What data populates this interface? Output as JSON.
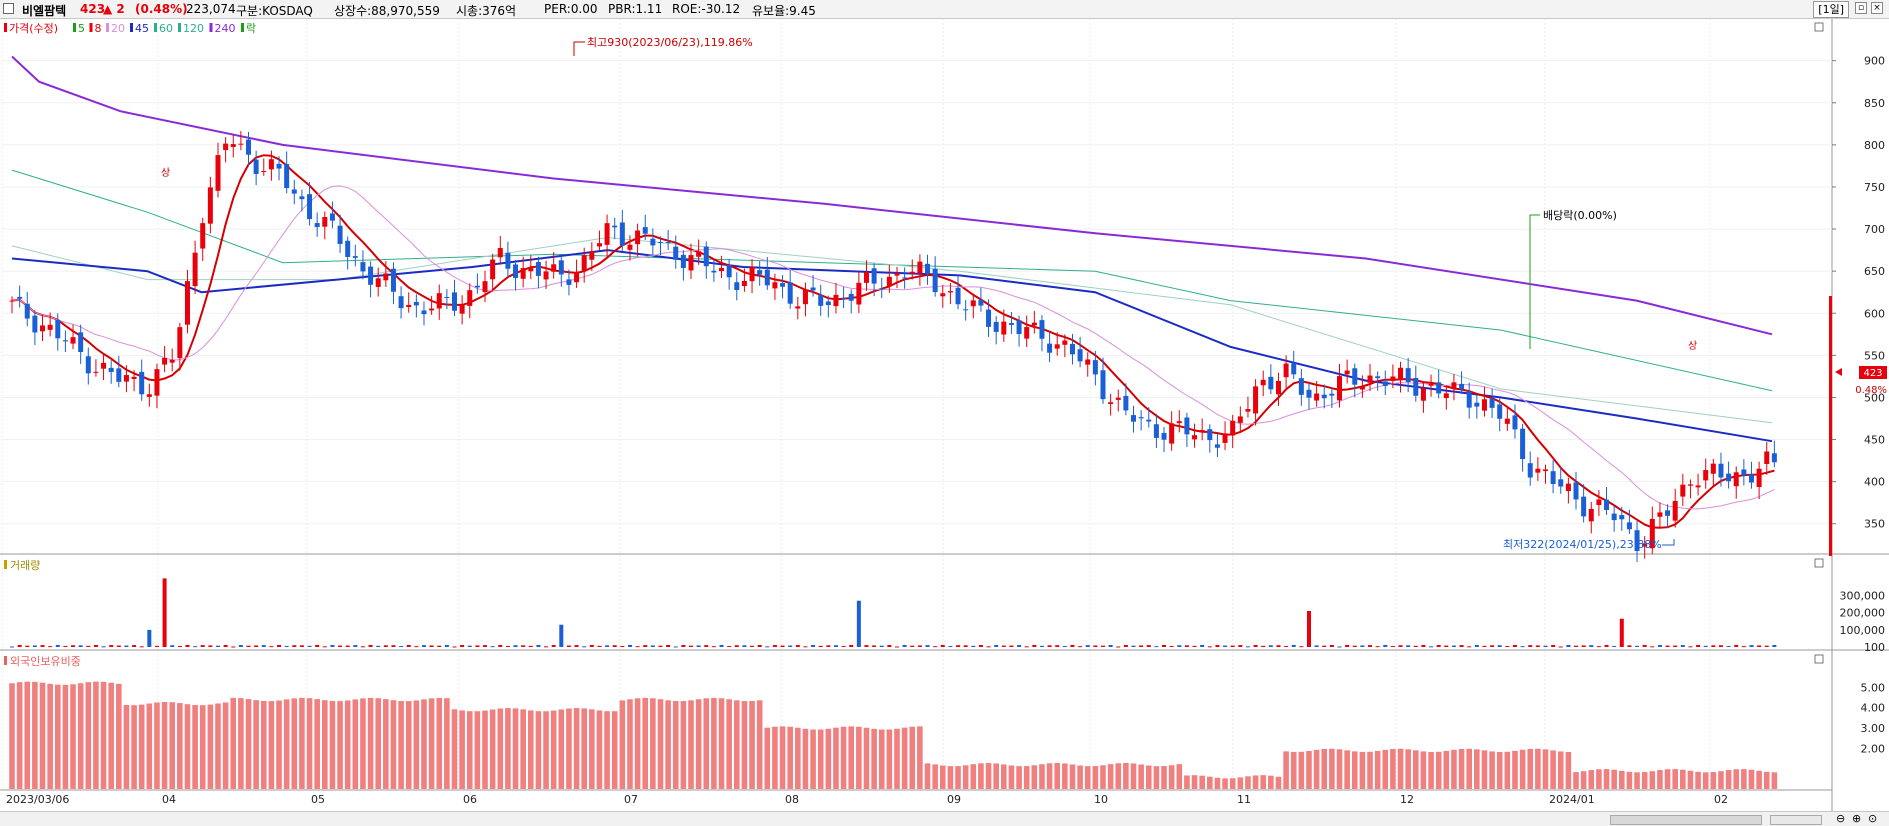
{
  "header": {
    "stock_name": "비엘팜텍",
    "price": "423",
    "change": "▲ 2",
    "change_pct": "(0.48%)",
    "volume": "223,074",
    "market": "구분:KOSDAQ",
    "shares": "상장수:88,970,559",
    "market_cap": "시총:376억",
    "per": "PER:0.00",
    "pbr": "PBR:1.11",
    "roe": "ROE:-30.12",
    "float_ratio": "유보율:9.45",
    "period": "[1일]",
    "colors": {
      "up": "#e8000b",
      "down": "#1a5fd6"
    }
  },
  "price_panel": {
    "legend": [
      {
        "label": "가격(수정)",
        "color": "#e8000b"
      },
      {
        "label": "5",
        "color": "#18a018"
      },
      {
        "label": "8",
        "color": "#e8000b"
      },
      {
        "label": "20",
        "color": "#d98fd9"
      },
      {
        "label": "45",
        "color": "#1c2bc4"
      },
      {
        "label": "60",
        "color": "#2fae8f"
      },
      {
        "label": "120",
        "color": "#2fae8f"
      },
      {
        "label": "240",
        "color": "#8a2ad6"
      },
      {
        "label": "락",
        "color": "#18a018"
      }
    ],
    "high_annotation": "최고930(2023/06/23),119.86%",
    "low_annotation": "최저322(2024/01/25),23.88%",
    "dividend_annotation": "배당락(0.00%)",
    "upper_limit_mark": "상",
    "current_price_label": "423",
    "current_change_label": "0.48%"
  },
  "volume_panel": {
    "legend": "거래량"
  },
  "foreign_panel": {
    "legend": "외국인보유비중"
  },
  "chart_data": [
    {
      "type": "candlestick",
      "title": "비엘팜텍",
      "x_start": "2023/03/06",
      "x_end": "2024/02",
      "ylim": [
        320,
        940
      ],
      "y_ticks": [
        350,
        400,
        450,
        500,
        550,
        600,
        650,
        700,
        750,
        800,
        850,
        900
      ],
      "x_tick_labels": [
        "2023/03/06",
        "04",
        "05",
        "06",
        "07",
        "08",
        "09",
        "10",
        "11",
        "12",
        "2024/01",
        "02"
      ],
      "close_path": [
        608,
        590,
        565,
        540,
        520,
        515,
        550,
        720,
        810,
        780,
        760,
        720,
        690,
        650,
        625,
        605,
        610,
        625,
        665,
        650,
        645,
        655,
        700,
        690,
        680,
        665,
        650,
        640,
        640,
        615,
        615,
        625,
        640,
        650,
        640,
        610,
        595,
        580,
        575,
        555,
        525,
        480,
        465,
        460,
        455,
        455,
        520,
        525,
        500,
        515,
        525,
        520,
        515,
        505,
        500,
        475,
        420,
        395,
        375,
        360,
        330,
        360,
        410,
        405,
        410,
        423
      ],
      "ma_close_labels": [
        "5",
        "8",
        "20",
        "45",
        "60",
        "120",
        "240"
      ],
      "ma_240": [
        [
          0,
          905
        ],
        [
          1,
          875
        ],
        [
          4,
          840
        ],
        [
          10,
          800
        ],
        [
          20,
          760
        ],
        [
          30,
          730
        ],
        [
          40,
          695
        ],
        [
          50,
          665
        ],
        [
          60,
          615
        ],
        [
          65,
          575
        ]
      ],
      "ma_45": [
        [
          0,
          665
        ],
        [
          5,
          650
        ],
        [
          7,
          625
        ],
        [
          12,
          640
        ],
        [
          17,
          655
        ],
        [
          22,
          675
        ],
        [
          27,
          655
        ],
        [
          35,
          645
        ],
        [
          40,
          625
        ],
        [
          45,
          560
        ],
        [
          50,
          520
        ],
        [
          55,
          500
        ],
        [
          60,
          475
        ],
        [
          65,
          448
        ]
      ],
      "ma_120": [
        [
          0,
          770
        ],
        [
          5,
          720
        ],
        [
          10,
          660
        ],
        [
          20,
          670
        ],
        [
          30,
          660
        ],
        [
          40,
          650
        ],
        [
          45,
          615
        ],
        [
          55,
          580
        ],
        [
          65,
          508
        ]
      ],
      "ma_60": [
        [
          0,
          680
        ],
        [
          5,
          640
        ],
        [
          12,
          640
        ],
        [
          22,
          690
        ],
        [
          35,
          650
        ],
        [
          45,
          610
        ],
        [
          55,
          510
        ],
        [
          65,
          470
        ]
      ],
      "annotations": [
        {
          "text": "최고930(2023/06/23),119.86%",
          "value": 930
        },
        {
          "text": "최저322(2024/01/25),23.88%",
          "value": 322
        },
        {
          "text": "배당락(0.00%)",
          "value": 0
        }
      ],
      "current_price": 423,
      "current_change_pct": 0.48
    },
    {
      "type": "bar",
      "title": "거래량",
      "y_ticks": [
        100,
        100000,
        200000,
        300000
      ],
      "y_tick_labels": [
        "100",
        "100,000",
        "200,000",
        "300,000"
      ],
      "ylim": [
        0,
        420000
      ],
      "notable_spikes": [
        {
          "date": "04 early",
          "value": 400000
        },
        {
          "date": "09 end",
          "value": 270000
        },
        {
          "date": "11 end",
          "value": 210000
        },
        {
          "date": "2024/02 early",
          "value": 165000
        },
        {
          "date": "06 late",
          "value": 130000
        },
        {
          "date": "04 early-2",
          "value": 100000
        }
      ]
    },
    {
      "type": "bar",
      "title": "외국인보유비중",
      "y_ticks": [
        2,
        3,
        4,
        5
      ],
      "y_tick_labels": [
        "2.00",
        "3.00",
        "4.00",
        "5.00"
      ],
      "ylim": [
        0,
        5.9
      ],
      "segments": [
        {
          "from": "2023/03",
          "to": "04 early",
          "value": 5.2
        },
        {
          "from": "04 early",
          "to": "05 early",
          "value": 4.2
        },
        {
          "from": "05 early",
          "to": "07 early",
          "value": 4.4
        },
        {
          "from": "07 early",
          "to": "08 mid",
          "value": 3.9
        },
        {
          "from": "08 mid",
          "to": "09 early",
          "value": 4.4
        },
        {
          "from": "09 early",
          "to": "09 end",
          "value": 3.0
        },
        {
          "from": "09 end",
          "to": "11 end",
          "value": 1.2
        },
        {
          "from": "11 end",
          "to": "12 mid",
          "value": 0.6
        },
        {
          "from": "12 mid",
          "to": "2024/01 end",
          "value": 1.9
        },
        {
          "from": "2024/01 end",
          "to": "02",
          "value": 0.9
        }
      ]
    }
  ]
}
